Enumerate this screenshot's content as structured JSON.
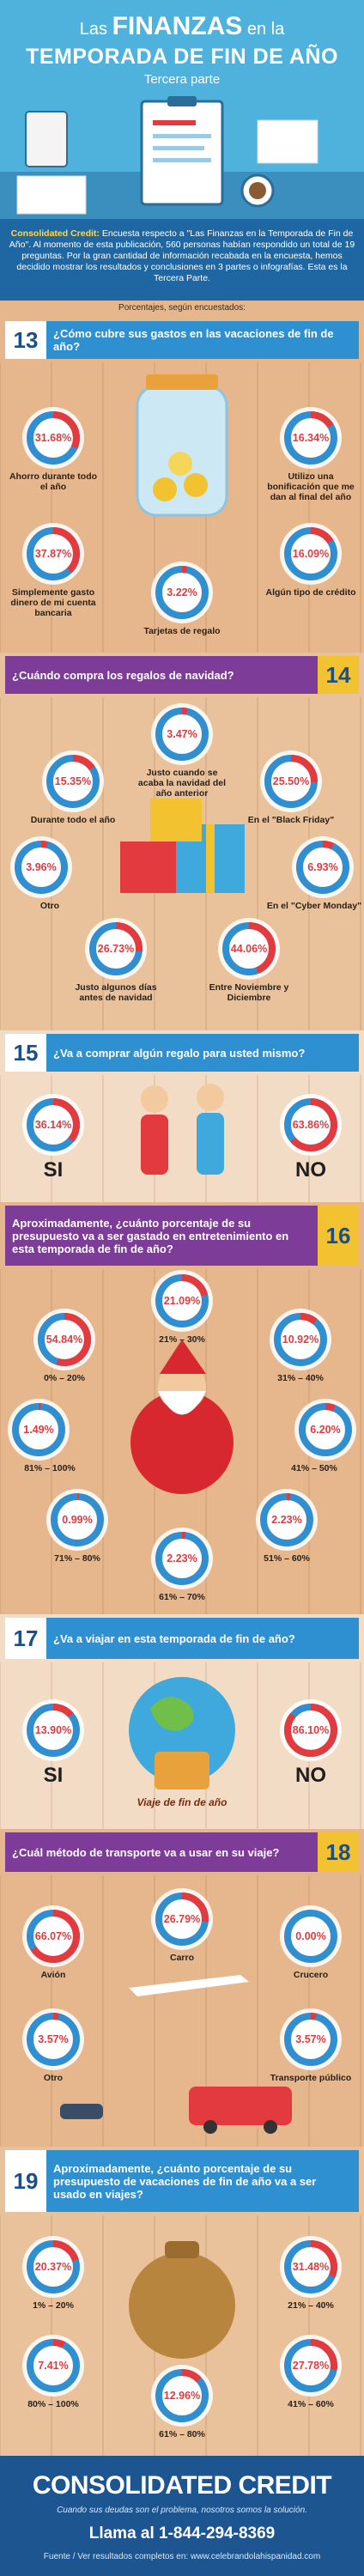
{
  "header": {
    "pre": "Las",
    "big": "FINANZAS",
    "post": "en la",
    "line2": "TEMPORADA DE FIN DE AÑO",
    "subtitle": "Tercera parte"
  },
  "intro": {
    "lead": "Consolidated Credit:",
    "text": "Encuesta respecto a \"Las Finanzas en la Temporada de Fin de Año\". Al momento de esta publicación, 560 personas habían respondido un total de 19 preguntas. Por la gran cantidad de información recabada en la encuesta, hemos decidido mostrar los resultados y conclusiones en 3 partes o infografías. Esta es la Tercera Parte."
  },
  "note": "Porcentajes, según encuestados:",
  "sections": [
    {
      "number": "13",
      "question": "¿Cómo cubre sus gastos en las vacaciones de fin de año?",
      "items": [
        {
          "value": 31.68,
          "label": "31.68%",
          "text": "Ahorro durante todo el año"
        },
        {
          "value": 16.34,
          "label": "16.34%",
          "text": "Utilizo una bonificación que me dan al final del año"
        },
        {
          "value": 37.87,
          "label": "37.87%",
          "text": "Simplemente gasto dinero de mi cuenta bancaria"
        },
        {
          "value": 3.22,
          "label": "3.22%",
          "text": "Tarjetas de regalo"
        },
        {
          "value": 16.09,
          "label": "16.09%",
          "text": "Algún tipo de crédito"
        }
      ]
    },
    {
      "number": "14",
      "question": "¿Cuándo compra los regalos de navidad?",
      "items": [
        {
          "value": 3.47,
          "label": "3.47%",
          "text": "Justo cuando se acaba la navidad del año anterior"
        },
        {
          "value": 15.35,
          "label": "15.35%",
          "text": "Durante todo el año"
        },
        {
          "value": 25.5,
          "label": "25.50%",
          "text": "En el \"Black Friday\""
        },
        {
          "value": 3.96,
          "label": "3.96%",
          "text": "Otro"
        },
        {
          "value": 6.93,
          "label": "6.93%",
          "text": "En el \"Cyber Monday\""
        },
        {
          "value": 26.73,
          "label": "26.73%",
          "text": "Justo algunos días antes de navidad"
        },
        {
          "value": 44.06,
          "label": "44.06%",
          "text": "Entre Noviembre y Diciembre"
        }
      ]
    },
    {
      "number": "15",
      "question": "¿Va a comprar algún regalo para usted mismo?",
      "items": [
        {
          "value": 36.14,
          "label": "36.14%",
          "text": "SI"
        },
        {
          "value": 63.86,
          "label": "63.86%",
          "text": "NO"
        }
      ]
    },
    {
      "number": "16",
      "question": "Aproximadamente, ¿cuánto porcentaje de su presupuesto va a ser gastado en entretenimiento en esta temporada de fin de año?",
      "items": [
        {
          "value": 21.09,
          "label": "21.09%",
          "text": "21% – 30%"
        },
        {
          "value": 54.84,
          "label": "54.84%",
          "text": "0% – 20%"
        },
        {
          "value": 10.92,
          "label": "10.92%",
          "text": "31% – 40%"
        },
        {
          "value": 1.49,
          "label": "1.49%",
          "text": "81% – 100%"
        },
        {
          "value": 6.2,
          "label": "6.20%",
          "text": "41% – 50%"
        },
        {
          "value": 0.99,
          "label": "0.99%",
          "text": "71% – 80%"
        },
        {
          "value": 2.23,
          "label": "2.23%",
          "text": "51% – 60%"
        },
        {
          "value": 2.23,
          "label": "2.23%",
          "text": "61% – 70%"
        }
      ]
    },
    {
      "number": "17",
      "question": "¿Va a viajar en esta temporada de fin de año?",
      "caption": "Viaje de fin de año",
      "items": [
        {
          "value": 13.9,
          "label": "13.90%",
          "text": "SI"
        },
        {
          "value": 86.1,
          "label": "86.10%",
          "text": "NO"
        }
      ]
    },
    {
      "number": "18",
      "question": "¿Cuál método de transporte va a usar en su viaje?",
      "items": [
        {
          "value": 66.07,
          "label": "66.07%",
          "text": "Avión"
        },
        {
          "value": 26.79,
          "label": "26.79%",
          "text": "Carro"
        },
        {
          "value": 0.0,
          "label": "0.00%",
          "text": "Crucero"
        },
        {
          "value": 3.57,
          "label": "3.57%",
          "text": "Otro"
        },
        {
          "value": 3.57,
          "label": "3.57%",
          "text": "Transporte público"
        }
      ]
    },
    {
      "number": "19",
      "question": "Aproximadamente, ¿cuánto porcentaje de su presupuesto de vacaciones de fin de año va a ser usado en viajes?",
      "items": [
        {
          "value": 20.37,
          "label": "20.37%",
          "text": "1% – 20%"
        },
        {
          "value": 31.48,
          "label": "31.48%",
          "text": "21% – 40%"
        },
        {
          "value": 7.41,
          "label": "7.41%",
          "text": "80% – 100%"
        },
        {
          "value": 27.78,
          "label": "27.78%",
          "text": "41% – 60%"
        },
        {
          "value": 12.96,
          "label": "12.96%",
          "text": "61% – 80%"
        }
      ]
    }
  ],
  "footer": {
    "brand": "CONSOLIDATED CREDIT",
    "tagline": "Cuando sus deudas son el problema, nosotros somos la solución.",
    "phone": "Llama al 1-844-294-8369",
    "source": "Fuente / Ver resultados completos en: www.celebrandolahispanidad.com"
  }
}
